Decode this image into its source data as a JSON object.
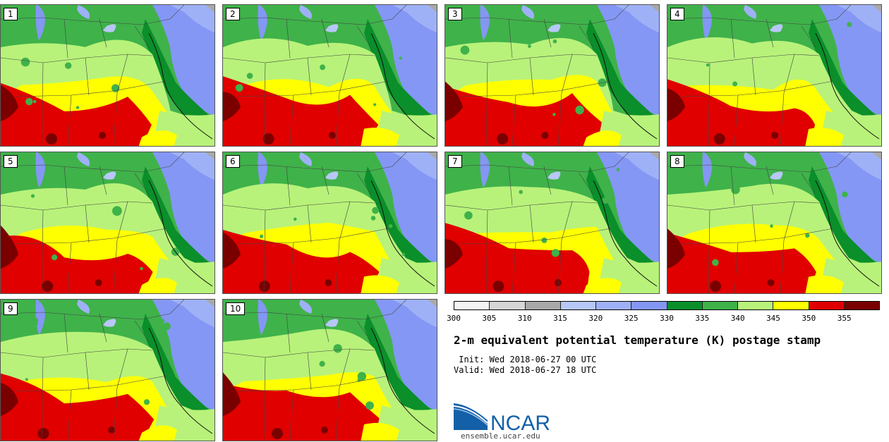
{
  "panels": [
    {
      "label": "1"
    },
    {
      "label": "2"
    },
    {
      "label": "3"
    },
    {
      "label": "4"
    },
    {
      "label": "5"
    },
    {
      "label": "6"
    },
    {
      "label": "7"
    },
    {
      "label": "8"
    },
    {
      "label": "9"
    },
    {
      "label": "10"
    }
  ],
  "colorbar": {
    "ticks": [
      "300",
      "305",
      "310",
      "315",
      "320",
      "325",
      "330",
      "335",
      "340",
      "345",
      "350",
      "355"
    ],
    "colors": [
      "#f4f4f4",
      "#d6d6d6",
      "#a8a8a8",
      "#b7c7f7",
      "#9fb1f6",
      "#8497f4",
      "#0a8f2a",
      "#3fb24a",
      "#b8f27a",
      "#ffff00",
      "#e00000",
      "#7a0000"
    ]
  },
  "title": "2-m equivalent potential temperature (K) postage stamp",
  "init": " Init: Wed 2018-06-27 00 UTC",
  "valid": "Valid: Wed 2018-06-27 18 UTC",
  "logo": {
    "text": "NCAR",
    "url": "ensemble.ucar.edu",
    "color": "#1460a8"
  }
}
